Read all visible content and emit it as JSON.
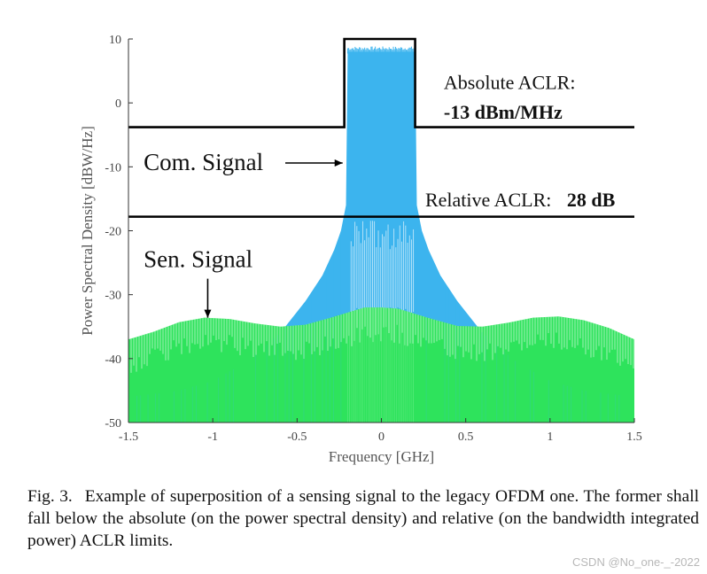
{
  "chart_data": {
    "type": "line",
    "xlabel": "Frequency [GHz]",
    "ylabel": "Power Spectral Density [dBW/Hz]",
    "xlim": [
      -1.5,
      1.5
    ],
    "ylim": [
      -50,
      10
    ],
    "xticks": [
      "-1.5",
      "-1",
      "-0.5",
      "0",
      "0.5",
      "1",
      "1.5"
    ],
    "yticks": [
      "10",
      "0",
      "-10",
      "-20",
      "-30",
      "-40",
      "-50"
    ],
    "grid": false,
    "series": [
      {
        "name": "Com. Signal",
        "color": "#3cb4ee",
        "points": [
          [
            -1.5,
            -46
          ],
          [
            -1.2,
            -45
          ],
          [
            -1.0,
            -43.5
          ],
          [
            -0.8,
            -40.5
          ],
          [
            -0.6,
            -36
          ],
          [
            -0.45,
            -31
          ],
          [
            -0.35,
            -27
          ],
          [
            -0.28,
            -23
          ],
          [
            -0.24,
            -20
          ],
          [
            -0.21,
            -16
          ],
          [
            -0.2,
            8
          ],
          [
            0.2,
            8
          ],
          [
            0.21,
            -16
          ],
          [
            0.24,
            -20
          ],
          [
            0.28,
            -23
          ],
          [
            0.35,
            -27
          ],
          [
            0.45,
            -31
          ],
          [
            0.6,
            -36
          ],
          [
            0.8,
            -40.5
          ],
          [
            1.0,
            -43.5
          ],
          [
            1.2,
            -45
          ],
          [
            1.5,
            -46
          ]
        ]
      },
      {
        "name": "Sen. Signal",
        "color": "#2ee35c",
        "points": [
          [
            -1.5,
            -37
          ],
          [
            -1.35,
            -35.8
          ],
          [
            -1.2,
            -34.3
          ],
          [
            -1.05,
            -33.6
          ],
          [
            -0.9,
            -33.8
          ],
          [
            -0.75,
            -34.5
          ],
          [
            -0.6,
            -35
          ],
          [
            -0.45,
            -34.7
          ],
          [
            -0.3,
            -33.6
          ],
          [
            -0.2,
            -32.8
          ],
          [
            -0.1,
            -32
          ],
          [
            0,
            -32
          ],
          [
            0.1,
            -32.2
          ],
          [
            0.2,
            -33
          ],
          [
            0.3,
            -33.8
          ],
          [
            0.45,
            -34.9
          ],
          [
            0.6,
            -35
          ],
          [
            0.75,
            -34.4
          ],
          [
            0.9,
            -33.6
          ],
          [
            1.05,
            -33.4
          ],
          [
            1.2,
            -34
          ],
          [
            1.35,
            -35.2
          ],
          [
            1.5,
            -37
          ]
        ]
      }
    ],
    "mask_lines": [
      {
        "name": "absolute-aclr-mask",
        "points": [
          [
            -1.5,
            -3.8
          ],
          [
            -0.22,
            -3.8
          ],
          [
            -0.22,
            10
          ],
          [
            0.2,
            10
          ],
          [
            0.2,
            -3.8
          ],
          [
            1.5,
            -3.8
          ]
        ]
      },
      {
        "name": "relative-aclr-mask",
        "points": [
          [
            -1.5,
            -17.8
          ],
          [
            1.5,
            -17.8
          ]
        ]
      }
    ],
    "annotations": [
      {
        "name": "absolute-aclr-label",
        "text": "Absolute ACLR:",
        "x": 0.37,
        "y": 2.2,
        "size": "mid",
        "bold": false
      },
      {
        "name": "absolute-aclr-value",
        "text": "-13 dBm/MHz",
        "x": 0.37,
        "y": -2.5,
        "size": "mid",
        "bold": true
      },
      {
        "name": "relative-aclr-label",
        "text": "Relative ACLR:",
        "x": 0.26,
        "y": -16.2,
        "size": "mid",
        "bold": false
      },
      {
        "name": "relative-aclr-value",
        "text": "28 dB",
        "x": 1.1,
        "y": -16.2,
        "size": "mid",
        "bold": true
      },
      {
        "name": "com-signal-label",
        "text": "Com. Signal",
        "x": -1.41,
        "y": -10.5,
        "size": "big",
        "bold": false
      },
      {
        "name": "sen-signal-label",
        "text": "Sen. Signal",
        "x": -1.41,
        "y": -25.7,
        "size": "big",
        "bold": false
      }
    ],
    "arrows": [
      {
        "name": "com-signal-arrow",
        "from": [
          -0.57,
          -9.4
        ],
        "to": [
          -0.23,
          -9.4
        ]
      },
      {
        "name": "sen-signal-arrow",
        "from": [
          -1.03,
          -27.5
        ],
        "to": [
          -1.03,
          -33.6
        ]
      }
    ]
  },
  "caption": {
    "fig_label": "Fig. 3.",
    "text": "Example of superposition of a sensing signal to the legacy OFDM one. The former shall fall below the absolute (on the power spectral density) and relative (on the bandwidth integrated power) ACLR limits."
  },
  "watermark": "CSDN @No_one-_-2022"
}
